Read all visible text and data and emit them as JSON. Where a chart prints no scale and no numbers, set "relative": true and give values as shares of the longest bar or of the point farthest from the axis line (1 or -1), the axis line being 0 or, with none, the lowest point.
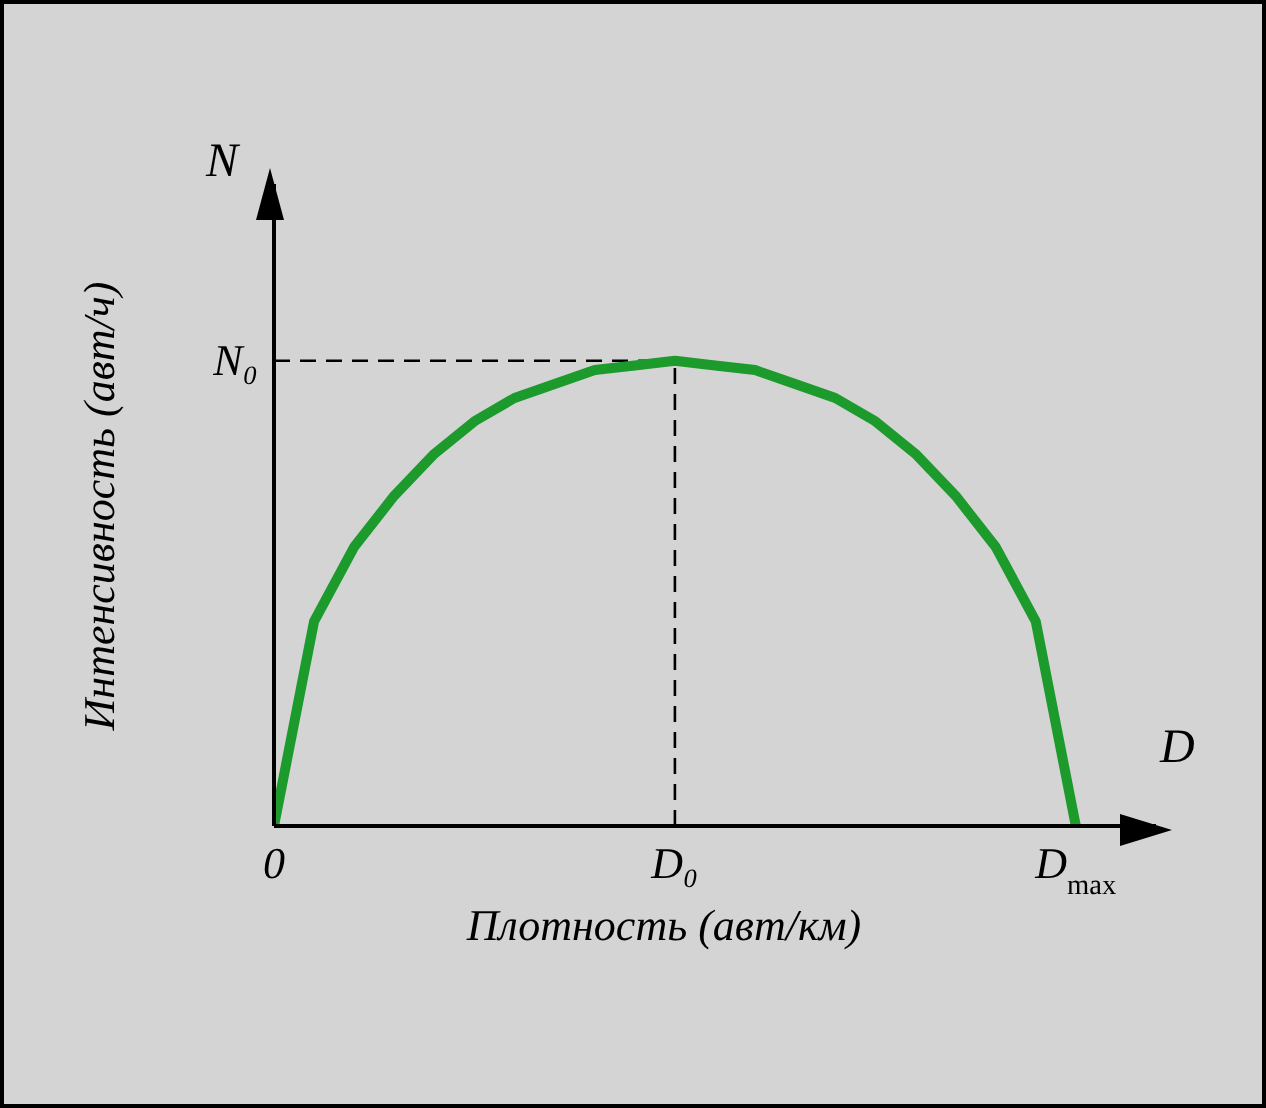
{
  "chart_data": {
    "type": "line",
    "relative": true,
    "xlabel": "Плотность (авт/км)",
    "ylabel": "Интенсивность (авт/ч)",
    "annotations": [
      "N",
      "D"
    ],
    "categories": [
      "0",
      null,
      null,
      null,
      null,
      null,
      null,
      null,
      null,
      null,
      "D₀",
      null,
      null,
      null,
      null,
      null,
      null,
      null,
      null,
      null,
      "D$_{max}$",
      null,
      null
    ],
    "series": [
      {
        "color": "#1c9a2c",
        "values": [
          0,
          0.44,
          0.6,
          0.71,
          0.8,
          0.87,
          0.92,
          0.95,
          0.98,
          0.99,
          1,
          0.99,
          0.98,
          0.95,
          0.92,
          0.87,
          0.8,
          0.71,
          0.6,
          0.44,
          0,
          null,
          null
        ]
      }
    ],
    "ref_lines": [
      {
        "axis": "y",
        "value": 1,
        "label": "N₀",
        "line_style": "dashed",
        "color": "#000000"
      },
      {
        "axis": "x",
        "value": "D₀",
        "line_style": "dashed",
        "color": "#000000"
      }
    ],
    "marker": "none",
    "line_style": "solid",
    "legend": false
  }
}
